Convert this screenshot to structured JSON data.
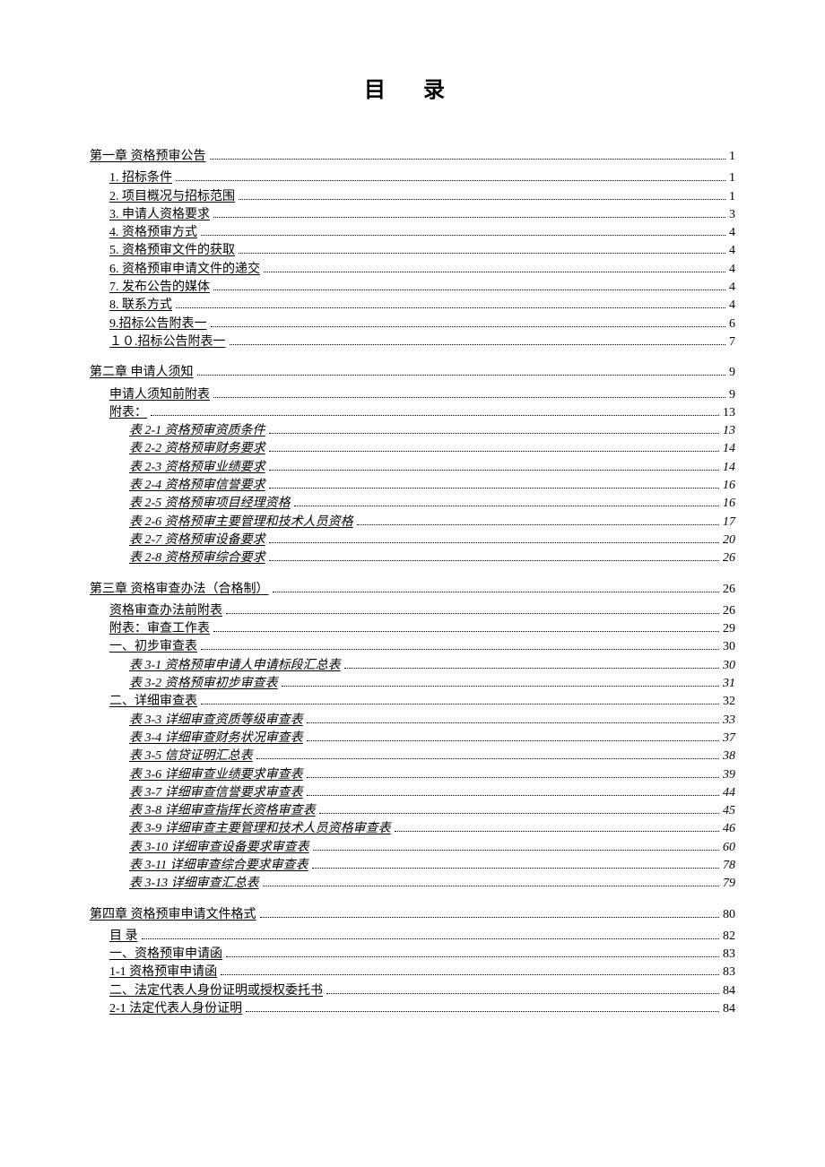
{
  "title": "目 录",
  "entries": [
    {
      "label": "第一章  资格预审公告",
      "page": "1",
      "level": 0
    },
    {
      "label": "1.  招标条件",
      "page": "1",
      "level": 1
    },
    {
      "label": "2.  项目概况与招标范围",
      "page": "1",
      "level": 1
    },
    {
      "label": "3.  申请人资格要求",
      "page": "3",
      "level": 1
    },
    {
      "label": "4.  资格预审方式",
      "page": "4",
      "level": 1
    },
    {
      "label": "5.  资格预审文件的获取",
      "page": "4",
      "level": 1
    },
    {
      "label": "6.  资格预审申请文件的递交",
      "page": "4",
      "level": 1
    },
    {
      "label": "7.  发布公告的媒体",
      "page": "4",
      "level": 1
    },
    {
      "label": "8.  联系方式",
      "page": "4",
      "level": 1
    },
    {
      "label": " 9.招标公告附表一",
      "page": " 6",
      "level": 1
    },
    {
      "label": " １０.招标公告附表一",
      "page": " 7",
      "level": 1
    },
    {
      "label": "第二章  申请人须知",
      "page": "9",
      "level": 0
    },
    {
      "label": "申请人须知前附表",
      "page": "9",
      "level": 1
    },
    {
      "label": "附表：",
      "page": "13",
      "level": 1
    },
    {
      "label": "表 2-1  资格预审资质条件",
      "page": "13",
      "level": 2
    },
    {
      "label": "表 2-2  资格预审财务要求",
      "page": "14",
      "level": 2
    },
    {
      "label": "表 2-3  资格预审业绩要求",
      "page": "14",
      "level": 2
    },
    {
      "label": "表 2-4  资格预审信誉要求",
      "page": "16",
      "level": 2
    },
    {
      "label": "表 2-5  资格预审项目经理资格",
      "page": "16",
      "level": 2
    },
    {
      "label": "表 2-6  资格预审主要管理和技术人员资格",
      "page": "17",
      "level": 2
    },
    {
      "label": "表 2-7  资格预审设备要求",
      "page": "20",
      "level": 2
    },
    {
      "label": "表 2-8  资格预审综合要求",
      "page": "26",
      "level": 2
    },
    {
      "label": "第三章  资格审查办法（合格制）",
      "page": "26",
      "level": 0
    },
    {
      "label": "资格审查办法前附表",
      "page": "26",
      "level": 1
    },
    {
      "label": "附表：审查工作表",
      "page": "29",
      "level": 1
    },
    {
      "label": "一、初步审查表",
      "page": "30",
      "level": 1
    },
    {
      "label": "表 3-1  资格预审申请人申请标段汇总表",
      "page": "30",
      "level": 2
    },
    {
      "label": "表 3-2  资格预审初步审查表",
      "page": "31",
      "level": 2
    },
    {
      "label": "二、详细审查表",
      "page": "32",
      "level": 1
    },
    {
      "label": "表 3-3  详细审查资质等级审查表",
      "page": "33",
      "level": 2
    },
    {
      "label": "表 3-4  详细审查财务状况审查表",
      "page": "37",
      "level": 2
    },
    {
      "label": "表 3-5  信贷证明汇总表",
      "page": "38",
      "level": 2
    },
    {
      "label": "表 3-6  详细审查业绩要求审查表",
      "page": "39",
      "level": 2
    },
    {
      "label": "表 3-7  详细审查信誉要求审查表",
      "page": "44",
      "level": 2
    },
    {
      "label": "表 3-8  详细审查指挥长资格审查表",
      "page": "45",
      "level": 2
    },
    {
      "label": "表 3-9  详细审查主要管理和技术人员资格审查表",
      "page": "46",
      "level": 2
    },
    {
      "label": "表 3-10  详细审查设备要求审查表",
      "page": "60",
      "level": 2
    },
    {
      "label": "表 3-11  详细审查综合要求审查表",
      "page": "78",
      "level": 2
    },
    {
      "label": "表 3-13  详细审查汇总表",
      "page": "79",
      "level": 2
    },
    {
      "label": "第四章  资格预审申请文件格式",
      "page": "80",
      "level": 0
    },
    {
      "label": "目  录",
      "page": "82",
      "level": 1
    },
    {
      "label": "一、资格预审申请函",
      "page": "83",
      "level": 1
    },
    {
      "label": "1-1  资格预审申请函",
      "page": "83",
      "level": 1
    },
    {
      "label": "二、法定代表人身份证明或授权委托书",
      "page": "84",
      "level": 1
    },
    {
      "label": "2-1  法定代表人身份证明",
      "page": "84",
      "level": 1
    }
  ]
}
